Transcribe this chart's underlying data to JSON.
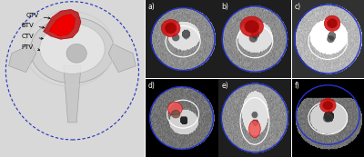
{
  "figure_width": 4.0,
  "figure_height": 1.73,
  "dpi": 100,
  "background_color": "#ffffff",
  "left_panel": {
    "label_color": "#000000",
    "labels": [
      "GTV",
      "BTV",
      "CTV",
      "PTV"
    ],
    "label_fontsize": 5.0
  },
  "right_panels": {
    "labels": [
      "a)",
      "b)",
      "c)",
      "d)",
      "e)",
      "f)"
    ],
    "label_color": "#ffffff",
    "label_fontsize": 5.5
  },
  "blue_outline_color": "#2233cc",
  "white_outline_color": "#ffffff",
  "red_color": "#cc1111",
  "pink_color": "#ee6666",
  "dark_gray_color": "#444444",
  "mid_gray_color": "#888888"
}
